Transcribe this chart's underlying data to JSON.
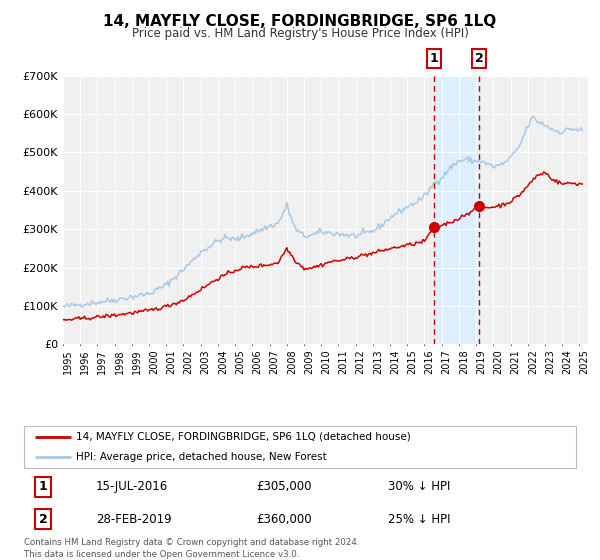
{
  "title": "14, MAYFLY CLOSE, FORDINGBRIDGE, SP6 1LQ",
  "subtitle": "Price paid vs. HM Land Registry's House Price Index (HPI)",
  "ylim": [
    0,
    700000
  ],
  "yticks": [
    0,
    100000,
    200000,
    300000,
    400000,
    500000,
    600000,
    700000
  ],
  "ytick_labels": [
    "£0",
    "£100K",
    "£200K",
    "£300K",
    "£400K",
    "£500K",
    "£600K",
    "£700K"
  ],
  "xlim_start": 1995.0,
  "xlim_end": 2025.5,
  "sale1_x": 2016.537,
  "sale1_y": 305000,
  "sale2_x": 2019.163,
  "sale2_y": 360000,
  "sale1_label": "15-JUL-2016",
  "sale1_price": "£305,000",
  "sale1_hpi": "30% ↓ HPI",
  "sale2_label": "28-FEB-2019",
  "sale2_price": "£360,000",
  "sale2_hpi": "25% ↓ HPI",
  "legend_line1": "14, MAYFLY CLOSE, FORDINGBRIDGE, SP6 1LQ (detached house)",
  "legend_line2": "HPI: Average price, detached house, New Forest",
  "footer_line1": "Contains HM Land Registry data © Crown copyright and database right 2024.",
  "footer_line2": "This data is licensed under the Open Government Licence v3.0.",
  "line_color_hpi": "#a8c8e8",
  "line_color_sale": "#cc0000",
  "vline_color": "#cc0000",
  "highlight_color": "#ddeeff",
  "background_color": "#f0f0f0"
}
